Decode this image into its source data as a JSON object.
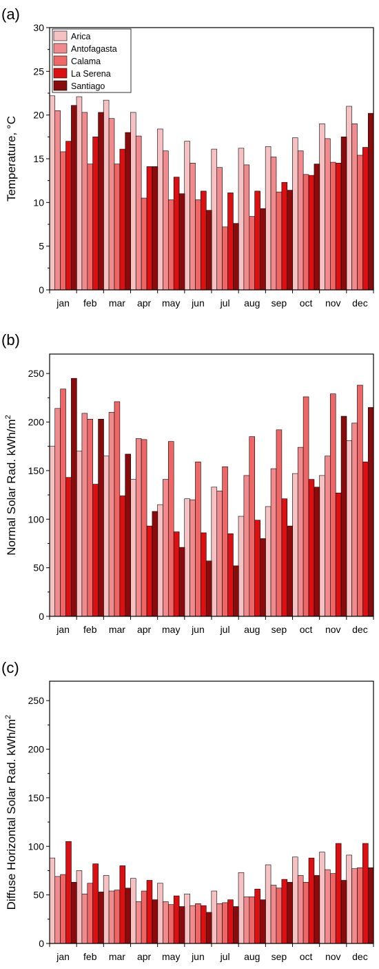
{
  "colors": {
    "Arica": "#f6c1c3",
    "Antofagasta": "#f08a8c",
    "Calama": "#ee6666",
    "La Serena": "#dc0f13",
    "Santiago": "#8a0b0c"
  },
  "chart_data": [
    {
      "type": "bar",
      "panel": "(a)",
      "title": "",
      "xlabel": "",
      "ylabel": "Temperature, °C",
      "ylabel_sup": "",
      "ylim": [
        0,
        30
      ],
      "yticks": [
        0,
        5,
        10,
        15,
        20,
        25,
        30
      ],
      "grid": false,
      "legend_position": "top-left",
      "categories": [
        "jan",
        "feb",
        "mar",
        "apr",
        "may",
        "jun",
        "jul",
        "aug",
        "sep",
        "oct",
        "nov",
        "dec"
      ],
      "series": [
        {
          "name": "Arica",
          "values": [
            22.2,
            22.1,
            21.7,
            20.3,
            18.4,
            17.0,
            16.1,
            16.2,
            16.4,
            17.4,
            19.0,
            21.0
          ]
        },
        {
          "name": "Antofagasta",
          "values": [
            20.5,
            20.3,
            19.6,
            17.6,
            15.9,
            14.5,
            14.0,
            14.3,
            15.2,
            15.9,
            17.3,
            19.0
          ]
        },
        {
          "name": "Calama",
          "values": [
            15.8,
            14.4,
            14.4,
            10.5,
            10.3,
            10.3,
            7.2,
            8.4,
            11.2,
            13.2,
            14.6,
            15.4
          ]
        },
        {
          "name": "La Serena",
          "values": [
            17.0,
            17.5,
            16.1,
            14.1,
            12.9,
            11.3,
            11.1,
            11.3,
            12.3,
            13.1,
            14.5,
            16.3
          ]
        },
        {
          "name": "Santiago",
          "values": [
            21.1,
            20.3,
            18.0,
            14.1,
            11.0,
            9.1,
            7.6,
            9.3,
            11.4,
            14.4,
            17.5,
            20.2
          ]
        }
      ]
    },
    {
      "type": "bar",
      "panel": "(b)",
      "title": "",
      "xlabel": "",
      "ylabel": "Normal Solar Rad. kWh/m",
      "ylabel_sup": "2",
      "ylim": [
        0,
        270
      ],
      "yticks": [
        0,
        50,
        100,
        150,
        200,
        250
      ],
      "grid": false,
      "legend_position": "",
      "categories": [
        "jan",
        "feb",
        "mar",
        "apr",
        "may",
        "jun",
        "jul",
        "aug",
        "sep",
        "oct",
        "nov",
        "dec"
      ],
      "series": [
        {
          "name": "Arica",
          "values": [
            175,
            170,
            165,
            141,
            115,
            121,
            133,
            103,
            113,
            147,
            145,
            181
          ]
        },
        {
          "name": "Antofagasta",
          "values": [
            214,
            209,
            210,
            183,
            141,
            120,
            129,
            145,
            152,
            174,
            165,
            199
          ]
        },
        {
          "name": "Calama",
          "values": [
            234,
            203,
            221,
            182,
            180,
            159,
            154,
            185,
            192,
            226,
            229,
            238
          ]
        },
        {
          "name": "La Serena",
          "values": [
            143,
            136,
            124,
            93,
            87,
            86,
            85,
            99,
            121,
            141,
            127,
            159
          ]
        },
        {
          "name": "Santiago",
          "values": [
            245,
            203,
            167,
            108,
            71,
            57,
            52,
            80,
            93,
            133,
            206,
            215
          ]
        }
      ]
    },
    {
      "type": "bar",
      "panel": "(c)",
      "title": "",
      "xlabel": "",
      "ylabel": "Diffuse Horizontal Solar Rad. kWh/m",
      "ylabel_sup": "2",
      "ylim": [
        0,
        270
      ],
      "yticks": [
        0,
        50,
        100,
        150,
        200,
        250
      ],
      "grid": false,
      "legend_position": "",
      "categories": [
        "jan",
        "feb",
        "mar",
        "apr",
        "may",
        "jun",
        "jul",
        "aug",
        "sep",
        "oct",
        "nov",
        "dec"
      ],
      "series": [
        {
          "name": "Arica",
          "values": [
            88,
            75,
            70,
            67,
            62,
            51,
            54,
            73,
            81,
            89,
            94,
            91
          ]
        },
        {
          "name": "Antofagasta",
          "values": [
            69,
            51,
            54,
            43,
            43,
            39,
            41,
            48,
            60,
            70,
            76,
            77
          ]
        },
        {
          "name": "Calama",
          "values": [
            71,
            62,
            55,
            54,
            40,
            41,
            42,
            48,
            57,
            63,
            72,
            78
          ]
        },
        {
          "name": "La Serena",
          "values": [
            105,
            82,
            80,
            65,
            49,
            39,
            45,
            56,
            66,
            88,
            103,
            103
          ]
        },
        {
          "name": "Santiago",
          "values": [
            63,
            53,
            57,
            45,
            38,
            32,
            38,
            45,
            63,
            70,
            65,
            78
          ]
        }
      ]
    }
  ]
}
